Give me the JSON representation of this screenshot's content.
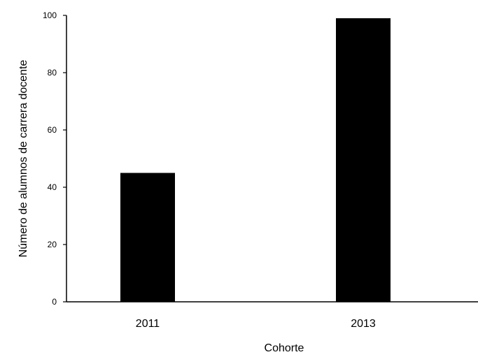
{
  "chart_data": {
    "type": "bar",
    "categories": [
      "2011",
      "2013"
    ],
    "values": [
      45,
      99
    ],
    "title": "",
    "xlabel": "Cohorte",
    "ylabel": "Número de alumnos de carrera docente",
    "ylim": [
      0,
      100
    ],
    "yticks": [
      "0",
      "20",
      "40",
      "60",
      "80",
      "100"
    ],
    "bar_color": "#000000",
    "grid": false,
    "legend": "none"
  }
}
